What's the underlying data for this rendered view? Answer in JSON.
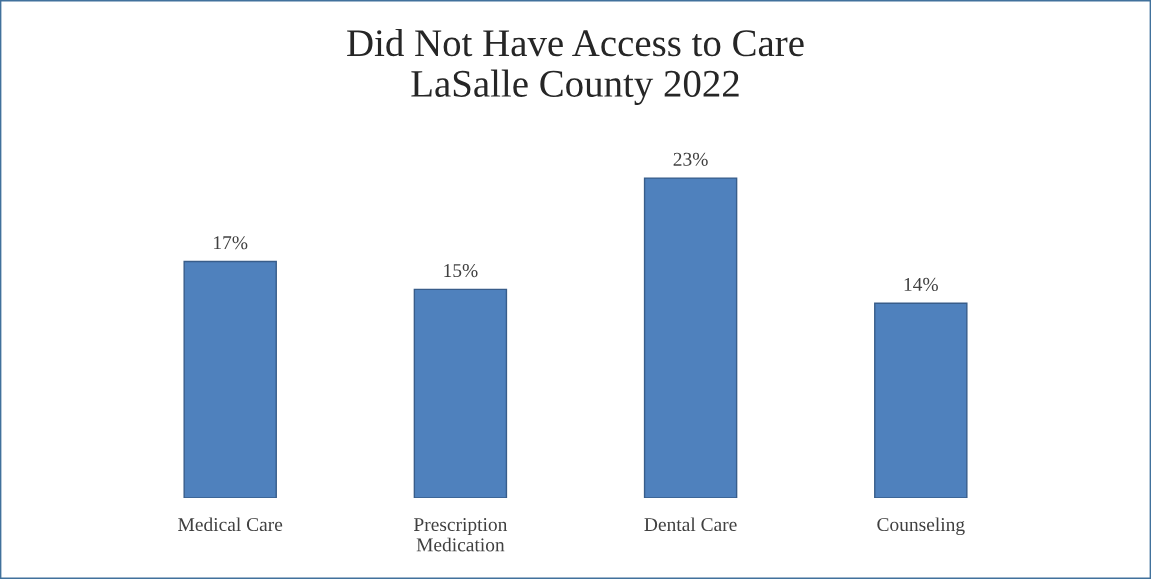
{
  "chart_data": {
    "type": "bar",
    "title": "Did Not Have Access to Care\nLaSalle County 2022",
    "categories": [
      "Medical Care",
      "Prescription\nMedication",
      "Dental Care",
      "Counseling"
    ],
    "values": [
      17,
      15,
      23,
      14
    ],
    "value_labels": [
      "17%",
      "15%",
      "23%",
      "14%"
    ],
    "color": "#4f81bd",
    "grid": false,
    "legend": false
  }
}
